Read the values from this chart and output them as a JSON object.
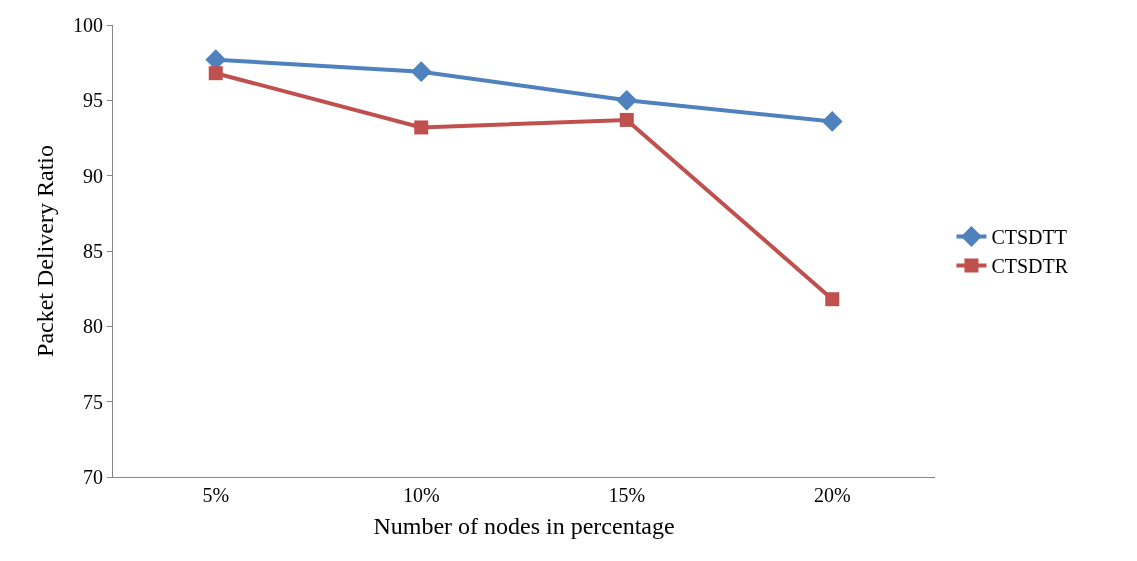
{
  "chart_data": {
    "type": "line",
    "xlabel": "Number of nodes in percentage",
    "ylabel": "Packet Delivery Ratio",
    "categories": [
      "5%",
      "10%",
      "15%",
      "20%"
    ],
    "series": [
      {
        "name": "CTSDTT",
        "color": "#4f81bd",
        "marker": "diamond",
        "values": [
          97.7,
          96.9,
          95.0,
          93.6
        ]
      },
      {
        "name": "CTSDTR",
        "color": "#c0504d",
        "marker": "square",
        "values": [
          96.8,
          93.2,
          93.7,
          81.8
        ]
      }
    ],
    "ylim": [
      70,
      100
    ],
    "yticks": [
      70,
      75,
      80,
      85,
      90,
      95,
      100
    ],
    "grid": false,
    "legend": "right",
    "line_style": "solid"
  }
}
